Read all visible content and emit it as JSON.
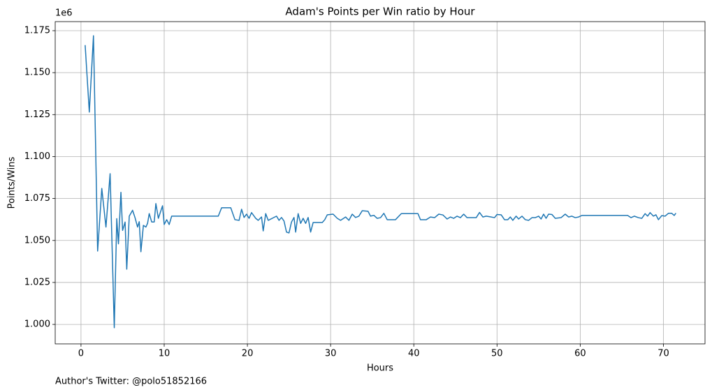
{
  "chart_data": {
    "type": "line",
    "title": "Adam's Points per Win ratio by Hour",
    "x_label": "Hours",
    "y_label": "Points/Wins",
    "y_offset_label": "1e6",
    "footnote": "Author's Twitter: @polo51852166",
    "grid": true,
    "xlim": [
      -3.1,
      75.0
    ],
    "ylim": [
      0.9884,
      1.1804
    ],
    "xticks": [
      0,
      10,
      20,
      30,
      40,
      50,
      60,
      70
    ],
    "yticks": [
      {
        "value": 1.0,
        "label": "1.000"
      },
      1.025,
      {
        "value": 1.05,
        "label": "1.050"
      },
      1.075,
      {
        "value": 1.1,
        "label": "1.100"
      },
      1.125,
      {
        "value": 1.15,
        "label": "1.150"
      },
      1.175
    ],
    "series": [
      {
        "name": "Points/Wins",
        "color": "#1f77b4",
        "x": [
          0.5,
          1.0,
          1.5,
          2.0,
          2.5,
          3.0,
          3.5,
          4.0,
          4.3,
          4.5,
          4.8,
          5.0,
          5.3,
          5.5,
          5.8,
          6.2,
          6.5,
          6.8,
          7.0,
          7.2,
          7.5,
          7.8,
          8.0,
          8.2,
          8.5,
          8.8,
          9.0,
          9.3,
          9.8,
          10.0,
          10.3,
          10.6,
          10.9,
          16.5,
          16.9,
          18.0,
          18.5,
          19.0,
          19.3,
          19.6,
          19.9,
          20.2,
          20.5,
          21.0,
          21.3,
          21.7,
          21.9,
          22.2,
          22.5,
          23.5,
          23.8,
          24.1,
          24.4,
          24.7,
          25.0,
          25.3,
          25.6,
          25.8,
          26.1,
          26.4,
          26.7,
          27.0,
          27.3,
          27.6,
          27.9,
          29.0,
          29.3,
          29.6,
          30.3,
          30.8,
          31.2,
          31.8,
          32.2,
          32.6,
          33.0,
          33.4,
          33.8,
          34.5,
          34.8,
          35.2,
          35.6,
          36.0,
          36.4,
          36.8,
          37.8,
          38.5,
          40.5,
          40.8,
          41.5,
          42.0,
          42.5,
          43.0,
          43.5,
          44.0,
          44.4,
          44.8,
          45.2,
          45.6,
          46.0,
          46.4,
          47.5,
          47.9,
          48.3,
          48.7,
          49.2,
          49.7,
          50.0,
          50.5,
          50.9,
          51.3,
          51.6,
          51.9,
          52.3,
          52.6,
          53.0,
          53.4,
          53.8,
          54.2,
          54.6,
          55.0,
          55.3,
          55.6,
          55.9,
          56.2,
          56.6,
          57.0,
          57.7,
          58.2,
          58.6,
          59.0,
          59.4,
          59.8,
          60.2,
          65.7,
          66.1,
          66.5,
          67.0,
          67.4,
          67.8,
          68.1,
          68.4,
          68.8,
          69.1,
          69.4,
          69.8,
          70.2,
          70.6,
          71.0,
          71.3,
          71.5
        ],
        "values": [
          1.1664,
          1.1265,
          1.172,
          1.0437,
          1.081,
          1.058,
          1.0898,
          0.998,
          1.063,
          1.048,
          1.0787,
          1.056,
          1.061,
          1.0329,
          1.0645,
          1.068,
          1.0635,
          1.058,
          1.0612,
          1.0433,
          1.059,
          1.058,
          1.0602,
          1.066,
          1.061,
          1.061,
          1.072,
          1.0632,
          1.0707,
          1.0595,
          1.0624,
          1.0595,
          1.0645,
          1.0645,
          1.0695,
          1.0695,
          1.0624,
          1.062,
          1.0686,
          1.0637,
          1.0657,
          1.0632,
          1.0666,
          1.0632,
          1.062,
          1.064,
          1.0557,
          1.066,
          1.062,
          1.0645,
          1.062,
          1.0637,
          1.0616,
          1.055,
          1.0545,
          1.061,
          1.0637,
          1.055,
          1.066,
          1.0602,
          1.0632,
          1.0602,
          1.0637,
          1.055,
          1.0607,
          1.0607,
          1.0624,
          1.0653,
          1.0657,
          1.0632,
          1.062,
          1.064,
          1.062,
          1.0657,
          1.0637,
          1.0645,
          1.0677,
          1.0674,
          1.0645,
          1.065,
          1.0632,
          1.0636,
          1.0662,
          1.0624,
          1.0624,
          1.066,
          1.066,
          1.0624,
          1.0624,
          1.064,
          1.0636,
          1.0657,
          1.0652,
          1.0628,
          1.064,
          1.0632,
          1.0645,
          1.0636,
          1.0657,
          1.0636,
          1.0636,
          1.0667,
          1.064,
          1.0645,
          1.0641,
          1.0636,
          1.0655,
          1.0653,
          1.0624,
          1.0624,
          1.064,
          1.062,
          1.0645,
          1.0628,
          1.0645,
          1.0624,
          1.062,
          1.0636,
          1.0636,
          1.0645,
          1.0628,
          1.0657,
          1.0632,
          1.0657,
          1.0655,
          1.0632,
          1.0636,
          1.0657,
          1.064,
          1.0645,
          1.0636,
          1.064,
          1.0649,
          1.0649,
          1.0636,
          1.0645,
          1.0636,
          1.0632,
          1.066,
          1.0645,
          1.0666,
          1.0645,
          1.0653,
          1.0624,
          1.0648,
          1.0645,
          1.0662,
          1.0662,
          1.0649,
          1.0663
        ]
      }
    ]
  }
}
